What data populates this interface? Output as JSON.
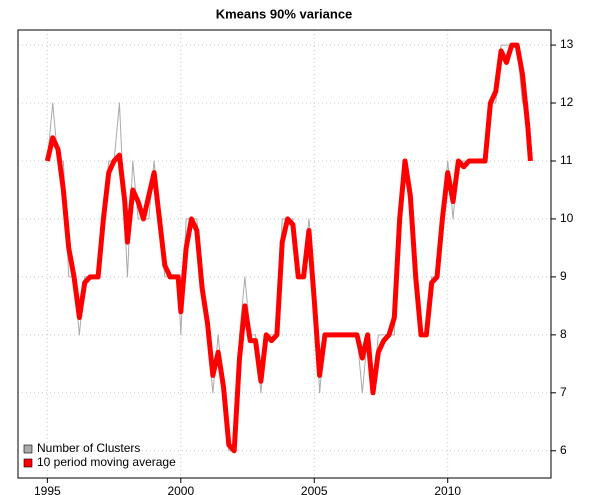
{
  "chart_data": {
    "type": "line",
    "title": "Kmeans 90% variance",
    "x": [
      1995.0,
      1995.2,
      1995.4,
      1995.6,
      1995.8,
      1996.0,
      1996.2,
      1996.4,
      1996.6,
      1996.9,
      1997.1,
      1997.3,
      1997.5,
      1997.7,
      1997.9,
      1998.0,
      1998.2,
      1998.4,
      1998.6,
      1998.8,
      1999.0,
      1999.2,
      1999.4,
      1999.6,
      1999.9,
      2000.0,
      2000.2,
      2000.4,
      2000.6,
      2000.8,
      2001.0,
      2001.2,
      2001.4,
      2001.6,
      2001.8,
      2002.0,
      2002.2,
      2002.4,
      2002.6,
      2002.8,
      2003.0,
      2003.2,
      2003.4,
      2003.6,
      2003.8,
      2004.0,
      2004.2,
      2004.4,
      2004.6,
      2004.8,
      2005.0,
      2005.2,
      2005.4,
      2005.8,
      2006.2,
      2006.6,
      2006.8,
      2007.0,
      2007.2,
      2007.4,
      2007.6,
      2007.8,
      2008.0,
      2008.2,
      2008.4,
      2008.6,
      2008.8,
      2009.0,
      2009.2,
      2009.4,
      2009.6,
      2009.8,
      2010.0,
      2010.2,
      2010.4,
      2010.6,
      2010.8,
      2011.0,
      2011.2,
      2011.4,
      2011.6,
      2011.8,
      2012.0,
      2012.2,
      2012.4,
      2012.6,
      2012.8,
      2013.0,
      2013.1
    ],
    "series": [
      {
        "name": "Number of Clusters",
        "color": "#aaaaaa",
        "width": 1,
        "values": [
          11,
          12,
          11,
          11,
          9,
          9,
          8,
          9,
          9,
          9,
          10,
          11,
          11,
          12,
          10,
          9,
          11,
          10,
          10,
          10,
          11,
          10,
          9,
          9,
          9,
          8,
          10,
          10,
          10,
          9,
          8,
          7,
          8,
          7,
          6,
          6,
          8,
          9,
          8,
          8,
          7,
          8,
          8,
          8,
          10,
          10,
          10,
          9,
          9,
          10,
          9,
          7,
          8,
          8,
          8,
          8,
          7,
          8,
          7,
          8,
          8,
          8,
          8,
          10,
          11,
          10,
          9,
          8,
          8,
          9,
          9,
          10,
          11,
          10,
          11,
          11,
          11,
          11,
          11,
          11,
          12,
          12,
          13,
          13,
          13,
          13,
          12,
          12,
          11
        ]
      },
      {
        "name": "10 period moving average",
        "color": "#ff0000",
        "width": 5,
        "values": [
          11.0,
          11.4,
          11.2,
          10.5,
          9.5,
          9.0,
          8.3,
          8.9,
          9.0,
          9.0,
          10.0,
          10.8,
          11.0,
          11.1,
          10.3,
          9.6,
          10.5,
          10.3,
          10.0,
          10.4,
          10.8,
          10.0,
          9.2,
          9.0,
          9.0,
          8.4,
          9.5,
          10.0,
          9.8,
          8.8,
          8.2,
          7.3,
          7.7,
          7.1,
          6.1,
          6.0,
          7.6,
          8.5,
          7.9,
          7.9,
          7.2,
          8.0,
          7.9,
          8.0,
          9.6,
          10.0,
          9.9,
          9.0,
          9.0,
          9.8,
          8.6,
          7.3,
          8.0,
          8.0,
          8.0,
          8.0,
          7.6,
          8.0,
          7.0,
          7.7,
          7.9,
          8.0,
          8.3,
          10.0,
          11.0,
          10.4,
          9.0,
          8.0,
          8.0,
          8.9,
          9.0,
          10.0,
          10.8,
          10.3,
          11.0,
          10.9,
          11.0,
          11.0,
          11.0,
          11.0,
          12.0,
          12.2,
          12.9,
          12.7,
          13.0,
          13.0,
          12.5,
          11.6,
          11.0
        ]
      }
    ],
    "xlim": [
      1993.9,
      2013.87
    ],
    "xticks": [
      1995,
      2000,
      2005,
      2010
    ],
    "ylim": [
      5.53,
      13.26
    ],
    "yticks": [
      6,
      7,
      8,
      9,
      10,
      11,
      12,
      13
    ],
    "grid": true,
    "legend": "bottomleft"
  }
}
